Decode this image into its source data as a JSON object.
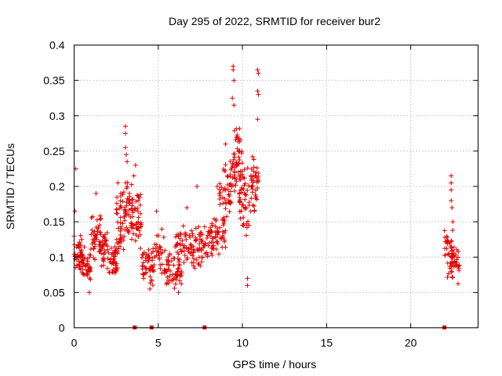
{
  "chart_data": {
    "type": "scatter",
    "title": "Day 295 of 2022, SRMTID for receiver bur2",
    "xlabel": "GPS time / hours",
    "ylabel": "SRMTID / TECUs",
    "xlim": [
      0,
      24
    ],
    "ylim": [
      0,
      0.4
    ],
    "xticks": [
      "0",
      "5",
      "10",
      "15",
      "20"
    ],
    "yticks": [
      "0",
      "0.05",
      "0.1",
      "0.15",
      "0.2",
      "0.25",
      "0.3",
      "0.35",
      "0.4"
    ],
    "grid": true,
    "marker": "+",
    "color": "#e00000",
    "zero_markers_x": [
      3.6,
      4.6,
      7.75,
      22.0
    ],
    "clusters": [
      {
        "x": [
          0.0,
          0.5
        ],
        "y": [
          0.07,
          0.14
        ],
        "n": 40,
        "spikes": [
          [
            0.1,
            0.225
          ],
          [
            0.05,
            0.165
          ]
        ]
      },
      {
        "x": [
          0.4,
          1.0
        ],
        "y": [
          0.06,
          0.12
        ],
        "n": 40,
        "spikes": [
          [
            0.9,
            0.05
          ]
        ]
      },
      {
        "x": [
          1.0,
          1.6
        ],
        "y": [
          0.09,
          0.17
        ],
        "n": 40,
        "spikes": [
          [
            1.3,
            0.19
          ]
        ]
      },
      {
        "x": [
          1.5,
          2.0
        ],
        "y": [
          0.08,
          0.14
        ],
        "n": 35,
        "spikes": []
      },
      {
        "x": [
          2.0,
          2.6
        ],
        "y": [
          0.07,
          0.12
        ],
        "n": 40,
        "spikes": []
      },
      {
        "x": [
          2.5,
          3.0
        ],
        "y": [
          0.1,
          0.2
        ],
        "n": 40,
        "spikes": [
          [
            2.6,
            0.205
          ]
        ]
      },
      {
        "x": [
          3.0,
          3.5
        ],
        "y": [
          0.12,
          0.22
        ],
        "n": 45,
        "spikes": [
          [
            3.05,
            0.285
          ],
          [
            3.05,
            0.275
          ],
          [
            3.05,
            0.255
          ],
          [
            3.1,
            0.245
          ],
          [
            3.15,
            0.235
          ]
        ]
      },
      {
        "x": [
          3.4,
          4.0
        ],
        "y": [
          0.1,
          0.2
        ],
        "n": 40,
        "spikes": [
          [
            3.55,
            0.215
          ],
          [
            3.65,
            0.23
          ]
        ]
      },
      {
        "x": [
          4.0,
          4.6
        ],
        "y": [
          0.06,
          0.12
        ],
        "n": 35,
        "spikes": [
          [
            4.5,
            0.055
          ]
        ]
      },
      {
        "x": [
          4.6,
          5.4
        ],
        "y": [
          0.06,
          0.14
        ],
        "n": 45,
        "spikes": [
          [
            4.9,
            0.165
          ]
        ]
      },
      {
        "x": [
          5.4,
          6.4
        ],
        "y": [
          0.05,
          0.11
        ],
        "n": 55,
        "spikes": [
          [
            6.2,
            0.05
          ]
        ]
      },
      {
        "x": [
          6.0,
          7.0
        ],
        "y": [
          0.09,
          0.15
        ],
        "n": 50,
        "spikes": [
          [
            6.7,
            0.17
          ]
        ]
      },
      {
        "x": [
          7.0,
          8.0
        ],
        "y": [
          0.08,
          0.15
        ],
        "n": 55,
        "spikes": [
          [
            7.3,
            0.2
          ]
        ]
      },
      {
        "x": [
          8.0,
          9.0
        ],
        "y": [
          0.1,
          0.16
        ],
        "n": 55,
        "spikes": [
          [
            8.5,
            0.2
          ]
        ]
      },
      {
        "x": [
          8.6,
          9.4
        ],
        "y": [
          0.14,
          0.24
        ],
        "n": 50,
        "spikes": [
          [
            9.0,
            0.26
          ]
        ]
      },
      {
        "x": [
          9.4,
          10.0
        ],
        "y": [
          0.18,
          0.3
        ],
        "n": 55,
        "spikes": [
          [
            9.45,
            0.37
          ],
          [
            9.45,
            0.365
          ],
          [
            9.5,
            0.35
          ],
          [
            9.4,
            0.325
          ],
          [
            9.5,
            0.315
          ]
        ]
      },
      {
        "x": [
          9.8,
          10.5
        ],
        "y": [
          0.12,
          0.24
        ],
        "n": 45,
        "spikes": [
          [
            10.3,
            0.07
          ],
          [
            10.3,
            0.06
          ]
        ]
      },
      {
        "x": [
          10.5,
          11.0
        ],
        "y": [
          0.16,
          0.26
        ],
        "n": 40,
        "spikes": [
          [
            10.9,
            0.365
          ],
          [
            10.95,
            0.36
          ],
          [
            10.9,
            0.335
          ],
          [
            10.95,
            0.33
          ],
          [
            10.9,
            0.295
          ]
        ]
      },
      {
        "x": [
          22.0,
          22.5
        ],
        "y": [
          0.07,
          0.15
        ],
        "n": 35,
        "spikes": [
          [
            22.4,
            0.215
          ],
          [
            22.4,
            0.205
          ],
          [
            22.4,
            0.195
          ],
          [
            22.4,
            0.18
          ],
          [
            22.45,
            0.17
          ]
        ]
      },
      {
        "x": [
          22.4,
          22.9
        ],
        "y": [
          0.06,
          0.12
        ],
        "n": 35,
        "spikes": [
          [
            22.5,
            0.15
          ]
        ]
      }
    ]
  }
}
